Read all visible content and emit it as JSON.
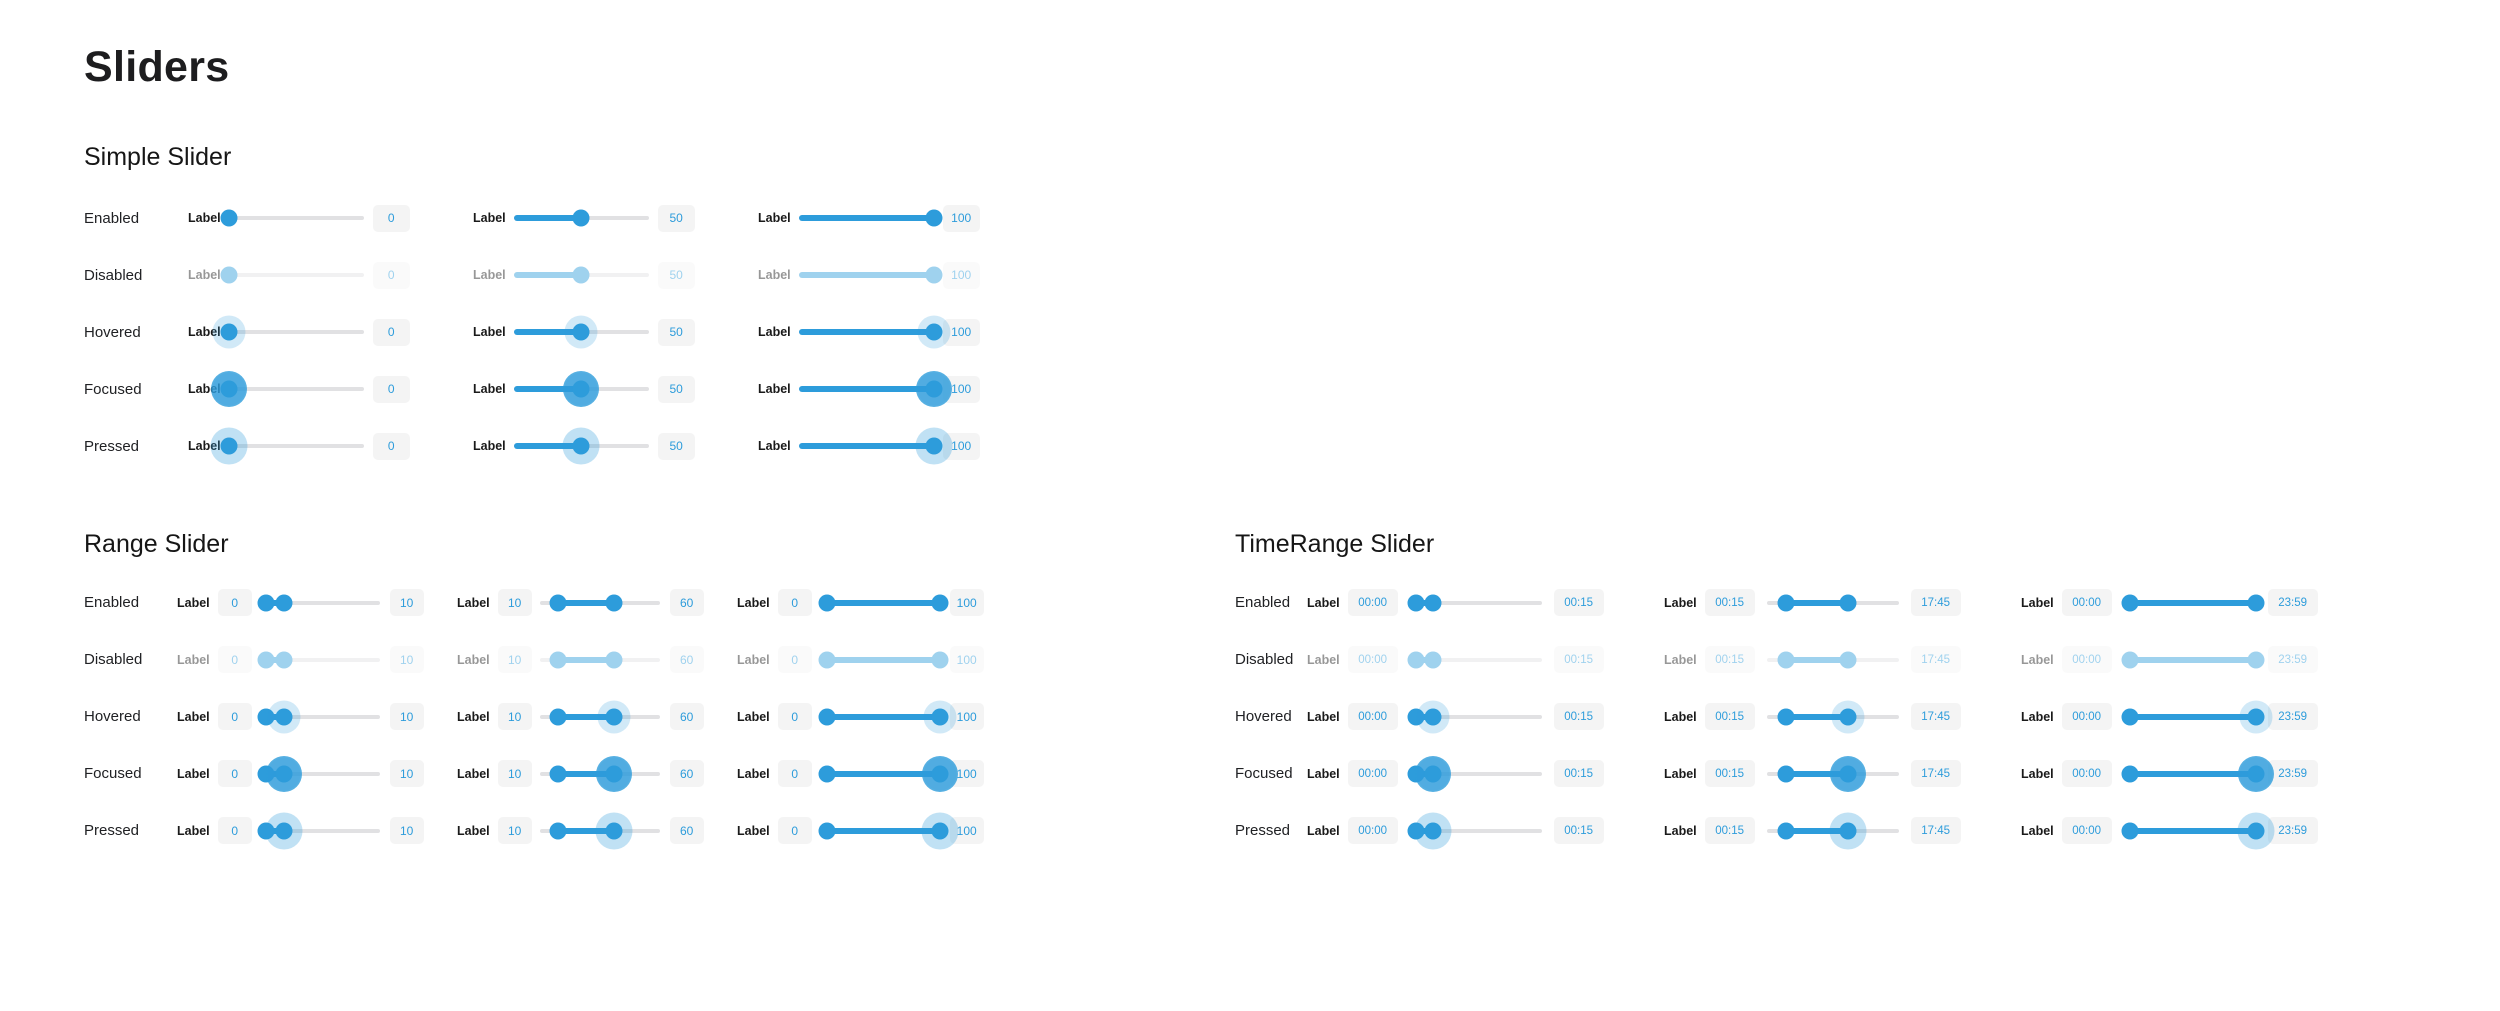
{
  "page": {
    "title": "Sliders"
  },
  "colors": {
    "accent": "#2D9CDB",
    "track": "#E1E1E3",
    "value_box_bg": "#F4F4F4"
  },
  "sections": [
    {
      "id": "simple",
      "heading": "Simple Slider",
      "type": "simple",
      "states": [
        "Enabled",
        "Disabled",
        "Hovered",
        "Focused",
        "Pressed"
      ],
      "columns": [
        {
          "label": "Label",
          "value": "0",
          "percent": 0
        },
        {
          "label": "Label",
          "value": "50",
          "percent": 50
        },
        {
          "label": "Label",
          "value": "100",
          "percent": 100
        }
      ]
    },
    {
      "id": "range",
      "heading": "Range Slider",
      "type": "range",
      "states": [
        "Enabled",
        "Disabled",
        "Hovered",
        "Focused",
        "Pressed"
      ],
      "columns": [
        {
          "label": "Label",
          "start_value": "0",
          "end_value": "10",
          "start_percent": 5,
          "end_percent": 20
        },
        {
          "label": "Label",
          "start_value": "10",
          "end_value": "60",
          "start_percent": 15,
          "end_percent": 62
        },
        {
          "label": "Label",
          "start_value": "0",
          "end_value": "100",
          "start_percent": 6,
          "end_percent": 100
        }
      ]
    },
    {
      "id": "timerange",
      "heading": "TimeRange Slider",
      "type": "range",
      "states": [
        "Enabled",
        "Disabled",
        "Hovered",
        "Focused",
        "Pressed"
      ],
      "columns": [
        {
          "label": "Label",
          "start_value": "00:00",
          "end_value": "00:15",
          "start_percent": 5,
          "end_percent": 18
        },
        {
          "label": "Label",
          "start_value": "00:15",
          "end_value": "17:45",
          "start_percent": 15,
          "end_percent": 62
        },
        {
          "label": "Label",
          "start_value": "00:00",
          "end_value": "23:59",
          "start_percent": 5,
          "end_percent": 100
        }
      ]
    }
  ]
}
